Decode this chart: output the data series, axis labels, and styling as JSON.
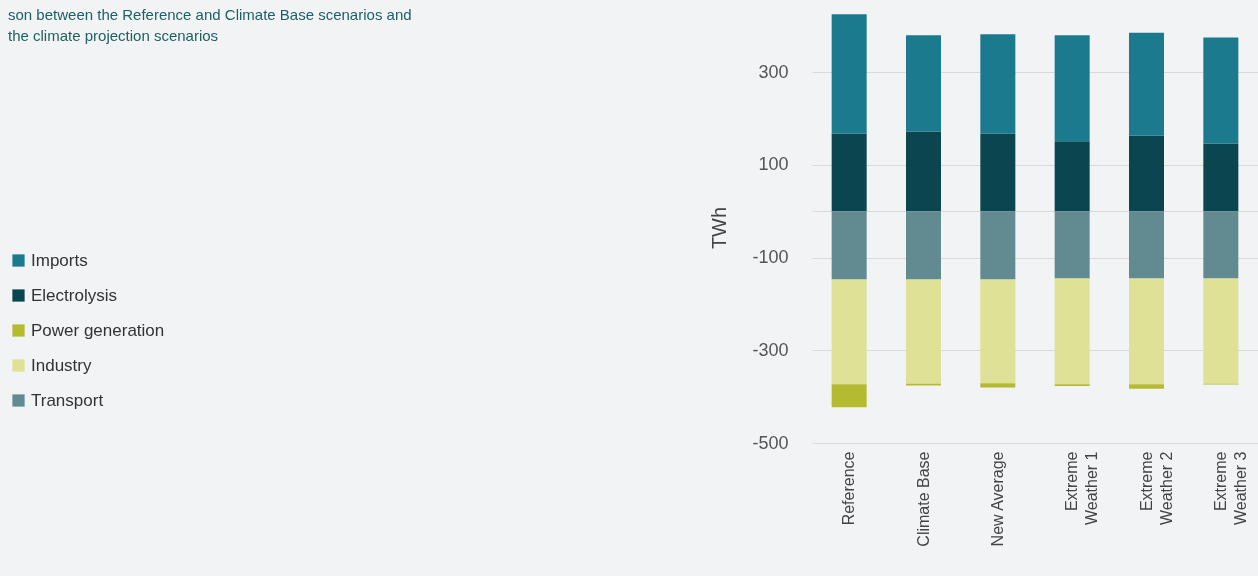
{
  "chart_data": {
    "type": "bar",
    "stacked": true,
    "title": [
      "son between the Reference and Climate Base scenarios and",
      "the climate projection scenarios"
    ],
    "ylabel": "TWh",
    "categories": [
      "Reference",
      "Climate Base",
      "New Average",
      "Extreme Weather 1",
      "Extreme Weather 2",
      "Extreme Weather 3"
    ],
    "series": [
      {
        "name": "Electrolysis",
        "color": "#0a4550",
        "values": [
          168,
          172,
          168,
          151,
          163,
          146
        ]
      },
      {
        "name": "Imports",
        "color": "#1c7a8f",
        "values": [
          257,
          208,
          214,
          229,
          222,
          229
        ]
      },
      {
        "name": "Transport",
        "color": "#628b91",
        "values": [
          -147,
          -147,
          -147,
          -145,
          -145,
          -145
        ]
      },
      {
        "name": "Industry",
        "color": "#dee196",
        "values": [
          -226,
          -225,
          -224,
          -228,
          -228,
          -227
        ]
      },
      {
        "name": "Power generation",
        "color": "#b5bb30",
        "values": [
          -50,
          -4,
          -9,
          -4,
          -10,
          -2
        ]
      }
    ],
    "ylim": [
      -500,
      430
    ],
    "yticks": [
      -500,
      -300,
      -100,
      {
        "value": 0,
        "label": null
      },
      100,
      300
    ],
    "grid": "y",
    "legend": "left"
  }
}
